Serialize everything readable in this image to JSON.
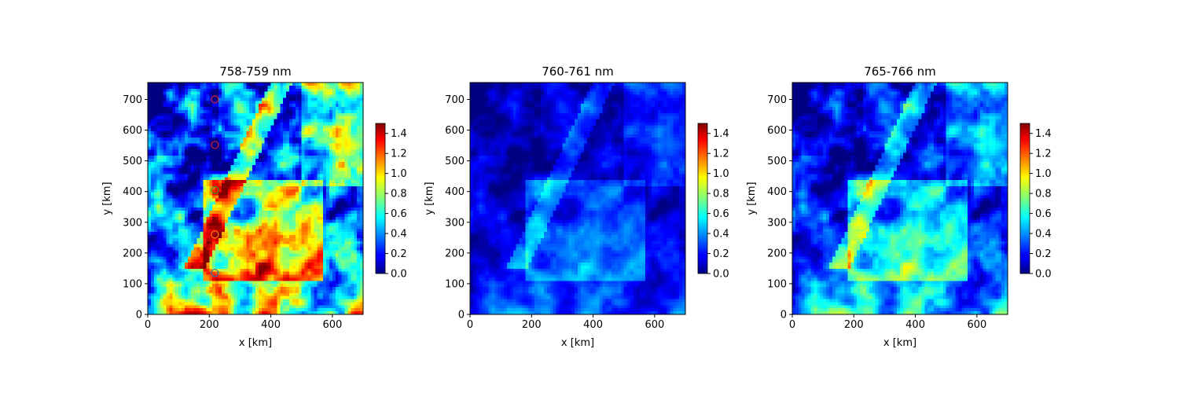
{
  "chart_data": [
    {
      "type": "heatmap",
      "title": "758-759 nm",
      "xlabel": "x [km]",
      "ylabel": "y [km]",
      "xlim": [
        0,
        700
      ],
      "ylim": [
        0,
        755
      ],
      "xticks": [
        "0",
        "200",
        "400",
        "600"
      ],
      "yticks": [
        "0",
        "100",
        "200",
        "300",
        "400",
        "500",
        "600",
        "700"
      ],
      "colorbar": {
        "colormap": "jet",
        "range": [
          0,
          1.5
        ],
        "ticks": [
          "0.0",
          "0.2",
          "0.4",
          "0.6",
          "0.8",
          "1.0",
          "1.2",
          "1.4"
        ]
      },
      "intensity": 1.0,
      "markers": [
        {
          "x": 218,
          "y": 700,
          "color": "#d62728"
        },
        {
          "x": 218,
          "y": 552,
          "color": "#d62728"
        },
        {
          "x": 218,
          "y": 405,
          "color": "#2ca02c"
        },
        {
          "x": 218,
          "y": 260,
          "color": "#ff7f0e"
        },
        {
          "x": 218,
          "y": 135,
          "color": "#1f77b4"
        }
      ]
    },
    {
      "type": "heatmap",
      "title": "760-761 nm",
      "xlabel": "x [km]",
      "ylabel": "y [km]",
      "xlim": [
        0,
        700
      ],
      "ylim": [
        0,
        755
      ],
      "xticks": [
        "0",
        "200",
        "400",
        "600"
      ],
      "yticks": [
        "0",
        "100",
        "200",
        "300",
        "400",
        "500",
        "600",
        "700"
      ],
      "colorbar": {
        "colormap": "jet",
        "range": [
          0,
          1.5
        ],
        "ticks": [
          "0.0",
          "0.2",
          "0.4",
          "0.6",
          "0.8",
          "1.0",
          "1.2",
          "1.4"
        ]
      },
      "intensity": 0.35,
      "markers": []
    },
    {
      "type": "heatmap",
      "title": "765-766 nm",
      "xlabel": "x [km]",
      "ylabel": "y [km]",
      "xlim": [
        0,
        700
      ],
      "ylim": [
        0,
        755
      ],
      "xticks": [
        "0",
        "200",
        "400",
        "600"
      ],
      "yticks": [
        "0",
        "100",
        "200",
        "300",
        "400",
        "500",
        "600",
        "700"
      ],
      "colorbar": {
        "colormap": "jet",
        "range": [
          0,
          1.5
        ],
        "ticks": [
          "0.0",
          "0.2",
          "0.4",
          "0.6",
          "0.8",
          "1.0",
          "1.2",
          "1.4"
        ]
      },
      "intensity": 0.6,
      "markers": []
    }
  ]
}
